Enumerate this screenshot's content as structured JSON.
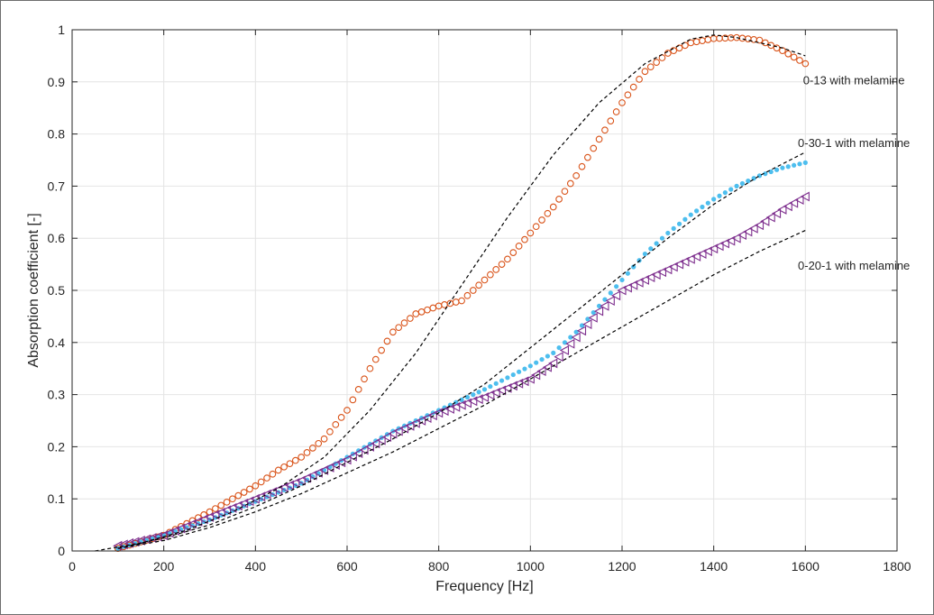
{
  "chart_data": {
    "type": "scatter",
    "title": "",
    "xlabel": "Frequency [Hz]",
    "ylabel": "Absorption coefficient [-]",
    "xlim": [
      0,
      1800
    ],
    "ylim": [
      0,
      1
    ],
    "xticks": [
      0,
      200,
      400,
      600,
      800,
      1000,
      1200,
      1400,
      1600,
      1800
    ],
    "xtick_labels": [
      "0",
      "200",
      "400",
      "600",
      "800",
      "1000",
      "1200",
      "1400",
      "1600",
      "1800"
    ],
    "yticks": [
      0,
      0.1,
      0.2,
      0.3,
      0.4,
      0.5,
      0.6,
      0.7,
      0.8,
      0.9,
      1
    ],
    "ytick_labels": [
      "0",
      "0.1",
      "0.2",
      "0.3",
      "0.4",
      "0.5",
      "0.6",
      "0.7",
      "0.8",
      "0.9",
      "1"
    ],
    "grid": true,
    "annotations": [
      {
        "text": "0-13 with melamine",
        "x": 1700,
        "y": 0.895
      },
      {
        "text": "0-30-1 with melamine",
        "x": 1700,
        "y": 0.775
      },
      {
        "text": "0-20-1 with melamine",
        "x": 1700,
        "y": 0.54
      }
    ],
    "series": [
      {
        "marker": "circle-open",
        "color": "#D95319",
        "points": [
          [
            100,
            0.005
          ],
          [
            200,
            0.03
          ],
          [
            300,
            0.075
          ],
          [
            400,
            0.125
          ],
          [
            450,
            0.155
          ],
          [
            500,
            0.18
          ],
          [
            550,
            0.215
          ],
          [
            600,
            0.27
          ],
          [
            650,
            0.35
          ],
          [
            700,
            0.42
          ],
          [
            750,
            0.455
          ],
          [
            800,
            0.47
          ],
          [
            850,
            0.48
          ],
          [
            900,
            0.52
          ],
          [
            950,
            0.56
          ],
          [
            1000,
            0.61
          ],
          [
            1050,
            0.66
          ],
          [
            1100,
            0.72
          ],
          [
            1150,
            0.79
          ],
          [
            1200,
            0.86
          ],
          [
            1250,
            0.92
          ],
          [
            1300,
            0.955
          ],
          [
            1350,
            0.975
          ],
          [
            1400,
            0.983
          ],
          [
            1450,
            0.985
          ],
          [
            1500,
            0.98
          ],
          [
            1550,
            0.96
          ],
          [
            1600,
            0.935
          ]
        ]
      },
      {
        "marker": "dot",
        "color": "#4DBEEE",
        "points": [
          [
            100,
            0.005
          ],
          [
            200,
            0.03
          ],
          [
            300,
            0.06
          ],
          [
            400,
            0.095
          ],
          [
            500,
            0.13
          ],
          [
            600,
            0.18
          ],
          [
            700,
            0.23
          ],
          [
            800,
            0.27
          ],
          [
            900,
            0.31
          ],
          [
            1000,
            0.355
          ],
          [
            1050,
            0.38
          ],
          [
            1100,
            0.42
          ],
          [
            1150,
            0.47
          ],
          [
            1200,
            0.52
          ],
          [
            1250,
            0.57
          ],
          [
            1300,
            0.61
          ],
          [
            1350,
            0.645
          ],
          [
            1400,
            0.675
          ],
          [
            1450,
            0.7
          ],
          [
            1500,
            0.72
          ],
          [
            1550,
            0.735
          ],
          [
            1600,
            0.745
          ]
        ]
      },
      {
        "marker": "triangle-open",
        "color": "#7E2F8E",
        "points": [
          [
            100,
            0.01
          ],
          [
            200,
            0.03
          ],
          [
            300,
            0.065
          ],
          [
            400,
            0.1
          ],
          [
            500,
            0.135
          ],
          [
            600,
            0.175
          ],
          [
            700,
            0.225
          ],
          [
            800,
            0.265
          ],
          [
            900,
            0.295
          ],
          [
            1000,
            0.33
          ],
          [
            1050,
            0.36
          ],
          [
            1100,
            0.41
          ],
          [
            1150,
            0.46
          ],
          [
            1200,
            0.5
          ],
          [
            1250,
            0.52
          ],
          [
            1300,
            0.54
          ],
          [
            1350,
            0.56
          ],
          [
            1400,
            0.58
          ],
          [
            1450,
            0.6
          ],
          [
            1500,
            0.625
          ],
          [
            1550,
            0.655
          ],
          [
            1600,
            0.68
          ]
        ]
      },
      {
        "marker": "dashed-line",
        "color": "#000000",
        "points": [
          [
            50,
            0
          ],
          [
            150,
            0.015
          ],
          [
            250,
            0.04
          ],
          [
            350,
            0.075
          ],
          [
            450,
            0.12
          ],
          [
            550,
            0.18
          ],
          [
            650,
            0.27
          ],
          [
            750,
            0.38
          ],
          [
            850,
            0.51
          ],
          [
            950,
            0.64
          ],
          [
            1050,
            0.76
          ],
          [
            1150,
            0.86
          ],
          [
            1250,
            0.935
          ],
          [
            1350,
            0.982
          ],
          [
            1400,
            0.99
          ],
          [
            1450,
            0.985
          ],
          [
            1550,
            0.965
          ],
          [
            1600,
            0.95
          ]
        ]
      },
      {
        "marker": "dashed-line",
        "color": "#000000",
        "points": [
          [
            100,
            0.005
          ],
          [
            200,
            0.025
          ],
          [
            300,
            0.05
          ],
          [
            400,
            0.085
          ],
          [
            500,
            0.125
          ],
          [
            600,
            0.17
          ],
          [
            700,
            0.215
          ],
          [
            800,
            0.265
          ],
          [
            900,
            0.32
          ],
          [
            1000,
            0.39
          ],
          [
            1100,
            0.46
          ],
          [
            1200,
            0.53
          ],
          [
            1300,
            0.6
          ],
          [
            1400,
            0.665
          ],
          [
            1500,
            0.72
          ],
          [
            1600,
            0.765
          ]
        ]
      },
      {
        "marker": "dashed-line",
        "color": "#000000",
        "points": [
          [
            100,
            0.005
          ],
          [
            200,
            0.02
          ],
          [
            300,
            0.045
          ],
          [
            400,
            0.075
          ],
          [
            500,
            0.11
          ],
          [
            600,
            0.15
          ],
          [
            700,
            0.19
          ],
          [
            800,
            0.235
          ],
          [
            900,
            0.28
          ],
          [
            1000,
            0.33
          ],
          [
            1100,
            0.38
          ],
          [
            1200,
            0.43
          ],
          [
            1300,
            0.48
          ],
          [
            1400,
            0.53
          ],
          [
            1500,
            0.575
          ],
          [
            1600,
            0.615
          ]
        ]
      }
    ]
  }
}
